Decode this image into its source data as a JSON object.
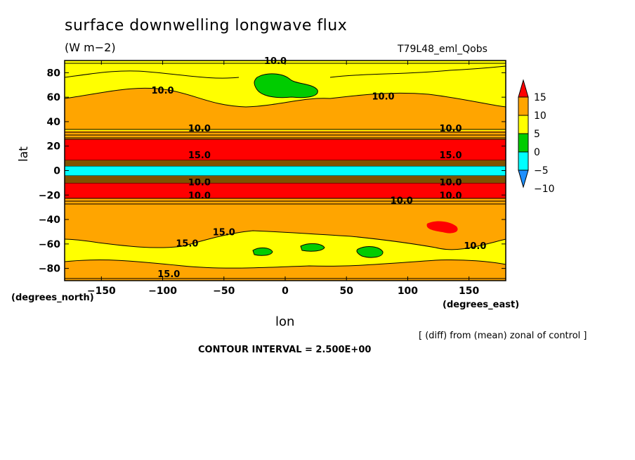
{
  "chart_data": {
    "type": "heatmap",
    "title": "surface downwelling longwave flux",
    "units": "(W m−2)",
    "run_name": "T79L48_eml_Qobs",
    "xlabel": "lon",
    "ylabel": "lat",
    "x_units_label": "(degrees_east)",
    "y_units_label": "(degrees_north)",
    "xlim": [
      -180,
      180
    ],
    "ylim": [
      -90,
      90
    ],
    "x_ticks": [
      -150,
      -100,
      -50,
      0,
      50,
      100,
      150
    ],
    "y_ticks": [
      80,
      60,
      40,
      20,
      0,
      -20,
      -40,
      -60,
      -80
    ],
    "colorbar": {
      "labels": [
        "15",
        "10",
        "5",
        "0",
        "−5",
        "−10"
      ],
      "levels": [
        15,
        10,
        5,
        0,
        -5,
        -10
      ],
      "colors": [
        "#ff0000",
        "#ffa500",
        "#ffff00",
        "#00cc00",
        "#00ffff",
        "#1e90ff"
      ]
    },
    "bands": [
      {
        "lat_max": 90,
        "lat_min": 30,
        "category": "5-10"
      },
      {
        "lat_max": 30,
        "lat_min": 26,
        "category": "10-15"
      },
      {
        "lat_max": 26,
        "lat_min": 8,
        "category": ">15"
      },
      {
        "lat_max": 8,
        "lat_min": 5,
        "category": "contour-dense"
      },
      {
        "lat_max": 5,
        "lat_min": -4,
        "category": "-5-0"
      },
      {
        "lat_max": -4,
        "lat_min": -9,
        "category": "contour-dense"
      },
      {
        "lat_max": -9,
        "lat_min": -25,
        "category": ">15"
      },
      {
        "lat_max": -25,
        "lat_min": -90,
        "category": "5-10"
      }
    ],
    "contour_labels": [
      "10.0",
      "10.0",
      "10.0",
      "10.0",
      "10.0",
      "15.0",
      "15.0",
      "10.0",
      "10.0",
      "10.0",
      "10.0",
      "10.0",
      "15.0",
      "15.0",
      "10.0",
      "15.0"
    ],
    "note": "[ (diff) from (mean) zonal of control ]",
    "contour_interval": "CONTOUR INTERVAL = 2.500E+00"
  }
}
